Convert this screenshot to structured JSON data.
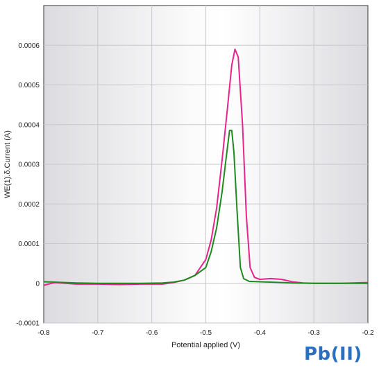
{
  "chart_data": {
    "type": "line",
    "title": "",
    "xlabel": "Potential applied (V)",
    "ylabel": "WE(1).δ.Current (A)",
    "xlim": [
      -0.8,
      -0.2
    ],
    "ylim": [
      -0.0001,
      0.0007
    ],
    "x_ticks": [
      -0.8,
      -0.7,
      -0.6,
      -0.5,
      -0.4,
      -0.3,
      -0.2
    ],
    "x_tick_labels": [
      "-0.8",
      "-0.7",
      "-0.6",
      "-0.5",
      "-0.4",
      "-0.3",
      "-0.2"
    ],
    "y_ticks": [
      -0.0001,
      0,
      0.0001,
      0.0002,
      0.0003,
      0.0004,
      0.0005,
      0.0006
    ],
    "y_tick_labels": [
      "-0.0001",
      "0",
      "0.0001",
      "0.0002",
      "0.0003",
      "0.0004",
      "0.0005",
      "0.0006"
    ],
    "grid": true,
    "legend": "none",
    "annotation": "Pb(II)",
    "series": [
      {
        "color": "#e8248c",
        "points": [
          [
            -0.8,
            -5e-06
          ],
          [
            -0.78,
            2e-06
          ],
          [
            -0.74,
            -2e-06
          ],
          [
            -0.7,
            -2e-06
          ],
          [
            -0.66,
            -3e-06
          ],
          [
            -0.62,
            -2e-06
          ],
          [
            -0.58,
            -2e-06
          ],
          [
            -0.56,
            2e-06
          ],
          [
            -0.54,
            8e-06
          ],
          [
            -0.52,
            2e-05
          ],
          [
            -0.5,
            6e-05
          ],
          [
            -0.49,
            0.00011
          ],
          [
            -0.48,
            0.00019
          ],
          [
            -0.47,
            0.00031
          ],
          [
            -0.46,
            0.00044
          ],
          [
            -0.452,
            0.00055
          ],
          [
            -0.446,
            0.00059
          ],
          [
            -0.44,
            0.00057
          ],
          [
            -0.432,
            0.0004
          ],
          [
            -0.425,
            0.00017
          ],
          [
            -0.418,
            4e-05
          ],
          [
            -0.41,
            1.5e-05
          ],
          [
            -0.4,
            1e-05
          ],
          [
            -0.38,
            1.2e-05
          ],
          [
            -0.36,
            1e-05
          ],
          [
            -0.34,
            4e-06
          ],
          [
            -0.32,
            1e-06
          ],
          [
            -0.3,
            0
          ],
          [
            -0.25,
            0
          ],
          [
            -0.2,
            2e-06
          ]
        ]
      },
      {
        "color": "#1e8a1e",
        "points": [
          [
            -0.8,
            4e-06
          ],
          [
            -0.78,
            3e-06
          ],
          [
            -0.74,
            1e-06
          ],
          [
            -0.7,
            0
          ],
          [
            -0.66,
            0
          ],
          [
            -0.62,
            0
          ],
          [
            -0.58,
            1e-06
          ],
          [
            -0.56,
            3e-06
          ],
          [
            -0.54,
            8e-06
          ],
          [
            -0.52,
            2e-05
          ],
          [
            -0.5,
            4e-05
          ],
          [
            -0.49,
            8e-05
          ],
          [
            -0.48,
            0.00014
          ],
          [
            -0.47,
            0.00023
          ],
          [
            -0.462,
            0.00032
          ],
          [
            -0.456,
            0.000385
          ],
          [
            -0.452,
            0.000385
          ],
          [
            -0.448,
            0.00033
          ],
          [
            -0.442,
            0.00018
          ],
          [
            -0.436,
            4e-05
          ],
          [
            -0.43,
            1.2e-05
          ],
          [
            -0.42,
            5e-06
          ],
          [
            -0.4,
            4e-06
          ],
          [
            -0.38,
            3e-06
          ],
          [
            -0.36,
            2e-06
          ],
          [
            -0.34,
            1e-06
          ],
          [
            -0.3,
            0
          ],
          [
            -0.25,
            0
          ],
          [
            -0.2,
            0
          ]
        ]
      }
    ]
  }
}
